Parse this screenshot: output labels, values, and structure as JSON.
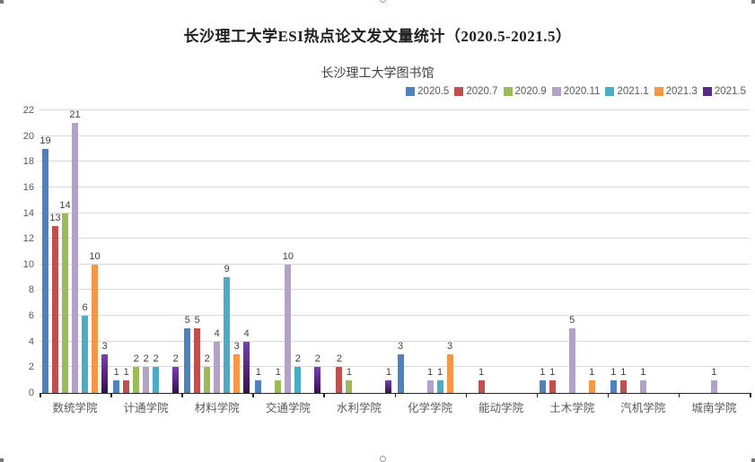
{
  "title": "长沙理工大学ESI热点论文发文量统计（2020.5-2021.5）",
  "subtitle": "长沙理工大学图书馆",
  "colors": {
    "background": "#ffffff",
    "gridline": "#d9d9d9",
    "axis": "#262626",
    "axis_text": "#595959",
    "bar_label_text": "#404040",
    "title_text": "#1f1f1f"
  },
  "chart_data": {
    "type": "bar",
    "title": "长沙理工大学ESI热点论文发文量统计（2020.5-2021.5）",
    "subtitle": "长沙理工大学图书馆",
    "categories": [
      "数统学院",
      "计通学院",
      "材料学院",
      "交通学院",
      "水利学院",
      "化学学院",
      "能动学院",
      "土木学院",
      "汽机学院",
      "城南学院"
    ],
    "series": [
      {
        "name": "2020.5",
        "color": "#4F81BD",
        "values": [
          19,
          1,
          5,
          1,
          0,
          3,
          0,
          1,
          1,
          0
        ]
      },
      {
        "name": "2020.7",
        "color": "#C0504D",
        "values": [
          13,
          1,
          5,
          0,
          2,
          0,
          1,
          1,
          1,
          0
        ]
      },
      {
        "name": "2020.9",
        "color": "#9BBB59",
        "values": [
          14,
          2,
          2,
          1,
          1,
          0,
          0,
          0,
          0,
          0
        ]
      },
      {
        "name": "2020.11",
        "color": "#B3A2C7",
        "values": [
          21,
          2,
          4,
          10,
          0,
          1,
          0,
          5,
          1,
          1
        ]
      },
      {
        "name": "2021.1",
        "color": "#4BACC6",
        "values": [
          6,
          2,
          9,
          2,
          0,
          1,
          0,
          0,
          0,
          0
        ]
      },
      {
        "name": "2021.3",
        "color": "#F79646",
        "values": [
          10,
          0,
          3,
          0,
          0,
          3,
          0,
          1,
          0,
          0
        ]
      },
      {
        "name": "2021.5",
        "color": "#582A83",
        "gradient": [
          "#7D3CB5",
          "#33114E"
        ],
        "values": [
          3,
          2,
          4,
          2,
          1,
          0,
          0,
          0,
          0,
          0
        ]
      }
    ],
    "ylim": [
      0,
      22
    ],
    "yticks": [
      0,
      2,
      4,
      6,
      8,
      10,
      12,
      14,
      16,
      18,
      20,
      22
    ],
    "grid": true,
    "legend_position": "top-right",
    "bar_labels_shown": true,
    "zero_bars_hidden": true
  }
}
